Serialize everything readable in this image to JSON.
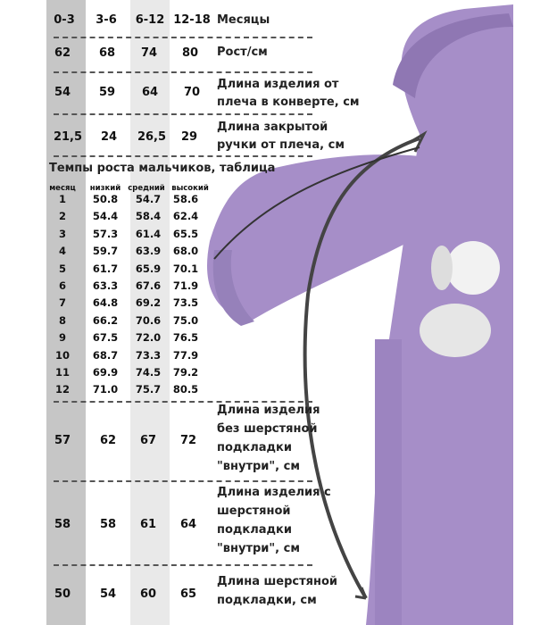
{
  "colors": {
    "gray_band": "#c6c6c6",
    "light_band": "#e9e9e9",
    "suit": "#a68ec8"
  },
  "sizes": {
    "header": [
      "0-3",
      "3-6",
      "6-12",
      "12-18"
    ],
    "header_label": "Месяцы",
    "rows": [
      {
        "values": [
          "62",
          "68",
          "74",
          "80"
        ],
        "label": "Рост/см"
      },
      {
        "values": [
          "54",
          "59",
          "64",
          "70"
        ],
        "label": "Длина изделия от плеча в конверте, см"
      },
      {
        "values": [
          "21,5",
          "24",
          "26,5",
          "29"
        ],
        "label": "Длина закрытой ручки от плеча, см"
      }
    ]
  },
  "growth": {
    "title": "Темпы роста мальчиков, таблица",
    "columns": [
      "месяц",
      "низкий",
      "средний",
      "высокий"
    ],
    "rows": [
      [
        "1",
        "50.8",
        "54.7",
        "58.6"
      ],
      [
        "2",
        "54.4",
        "58.4",
        "62.4"
      ],
      [
        "3",
        "57.3",
        "61.4",
        "65.5"
      ],
      [
        "4",
        "59.7",
        "63.9",
        "68.0"
      ],
      [
        "5",
        "61.7",
        "65.9",
        "70.1"
      ],
      [
        "6",
        "63.3",
        "67.6",
        "71.9"
      ],
      [
        "7",
        "64.8",
        "69.2",
        "73.5"
      ],
      [
        "8",
        "66.2",
        "70.6",
        "75.0"
      ],
      [
        "9",
        "67.5",
        "72.0",
        "76.5"
      ],
      [
        "10",
        "68.7",
        "73.3",
        "77.9"
      ],
      [
        "11",
        "69.9",
        "74.5",
        "79.2"
      ],
      [
        "12",
        "71.0",
        "75.7",
        "80.5"
      ]
    ]
  },
  "lengths": [
    {
      "values": [
        "57",
        "62",
        "67",
        "72"
      ],
      "label_lines": [
        "Длина изделия",
        "без шерстяной",
        "подкладки",
        "\"внутри\", см"
      ]
    },
    {
      "values": [
        "58",
        "58",
        "61",
        "64"
      ],
      "label_lines": [
        "Длина изделия с",
        "шерстяной",
        "подкладки",
        "\"внутри\", см"
      ]
    },
    {
      "values": [
        "50",
        "54",
        "60",
        "65"
      ],
      "label_lines": [
        "Длина шерстяной",
        "подкладки, см"
      ]
    }
  ]
}
